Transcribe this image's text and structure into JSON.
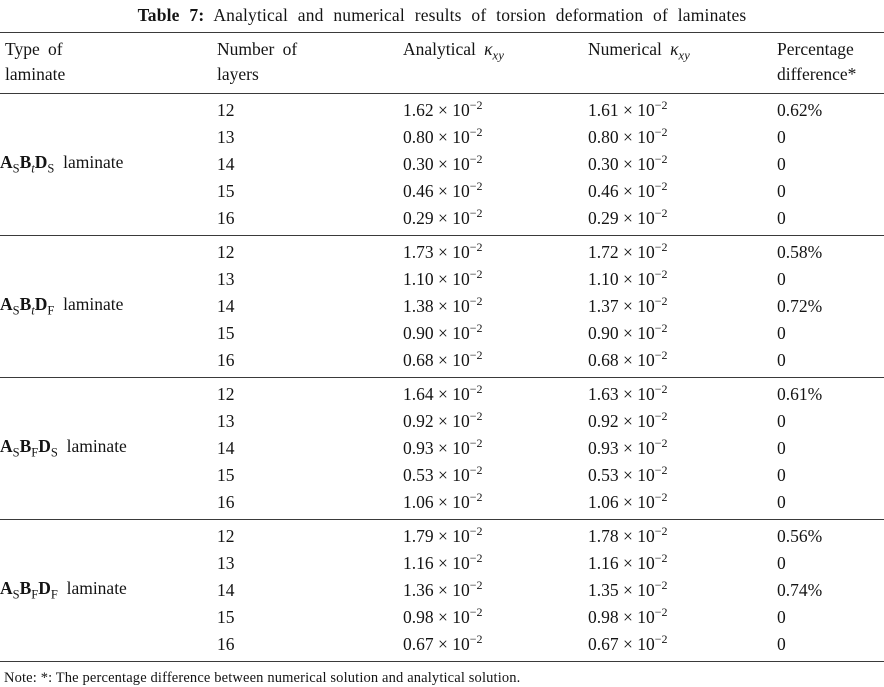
{
  "title": {
    "label": "Table 7:",
    "text": "Analytical and numerical results of torsion deformation of laminates"
  },
  "header": {
    "col1": [
      "Type of",
      "laminate"
    ],
    "col2": [
      "Number of",
      "layers"
    ],
    "col3": {
      "text": "Analytical",
      "symbol": "κ",
      "symbol_sub": "xy"
    },
    "col4": {
      "text": "Numerical",
      "symbol": "κ",
      "symbol_sub": "xy"
    },
    "col5": [
      "Percentage",
      "difference*"
    ]
  },
  "value_format": {
    "multiplier": "× 10",
    "exponent": "−2"
  },
  "groups": [
    {
      "name": {
        "parts": [
          {
            "base": "A",
            "sub": "S",
            "italic_sub": false
          },
          {
            "base": "B",
            "sub": "t",
            "italic_sub": true
          },
          {
            "base": "D",
            "sub": "S",
            "italic_sub": false
          }
        ],
        "suffix": "laminate"
      },
      "rows": [
        [
          "12",
          "1.62",
          "1.61",
          "0.62%"
        ],
        [
          "13",
          "0.80",
          "0.80",
          "0"
        ],
        [
          "14",
          "0.30",
          "0.30",
          "0"
        ],
        [
          "15",
          "0.46",
          "0.46",
          "0"
        ],
        [
          "16",
          "0.29",
          "0.29",
          "0"
        ]
      ]
    },
    {
      "name": {
        "parts": [
          {
            "base": "A",
            "sub": "S",
            "italic_sub": false
          },
          {
            "base": "B",
            "sub": "t",
            "italic_sub": true
          },
          {
            "base": "D",
            "sub": "F",
            "italic_sub": false
          }
        ],
        "suffix": "laminate"
      },
      "rows": [
        [
          "12",
          "1.73",
          "1.72",
          "0.58%"
        ],
        [
          "13",
          "1.10",
          "1.10",
          "0"
        ],
        [
          "14",
          "1.38",
          "1.37",
          "0.72%"
        ],
        [
          "15",
          "0.90",
          "0.90",
          "0"
        ],
        [
          "16",
          "0.68",
          "0.68",
          "0"
        ]
      ]
    },
    {
      "name": {
        "parts": [
          {
            "base": "A",
            "sub": "S",
            "italic_sub": false
          },
          {
            "base": "B",
            "sub": "F",
            "italic_sub": false
          },
          {
            "base": "D",
            "sub": "S",
            "italic_sub": false
          }
        ],
        "suffix": "laminate"
      },
      "rows": [
        [
          "12",
          "1.64",
          "1.63",
          "0.61%"
        ],
        [
          "13",
          "0.92",
          "0.92",
          "0"
        ],
        [
          "14",
          "0.93",
          "0.93",
          "0"
        ],
        [
          "15",
          "0.53",
          "0.53",
          "0"
        ],
        [
          "16",
          "1.06",
          "1.06",
          "0"
        ]
      ]
    },
    {
      "name": {
        "parts": [
          {
            "base": "A",
            "sub": "S",
            "italic_sub": false
          },
          {
            "base": "B",
            "sub": "F",
            "italic_sub": false
          },
          {
            "base": "D",
            "sub": "F",
            "italic_sub": false
          }
        ],
        "suffix": "laminate"
      },
      "rows": [
        [
          "12",
          "1.79",
          "1.78",
          "0.56%"
        ],
        [
          "13",
          "1.16",
          "1.16",
          "0"
        ],
        [
          "14",
          "1.36",
          "1.35",
          "0.74%"
        ],
        [
          "15",
          "0.98",
          "0.98",
          "0"
        ],
        [
          "16",
          "0.67",
          "0.67",
          "0"
        ]
      ]
    }
  ],
  "note": "Note: *: The percentage difference between numerical solution and analytical solution."
}
